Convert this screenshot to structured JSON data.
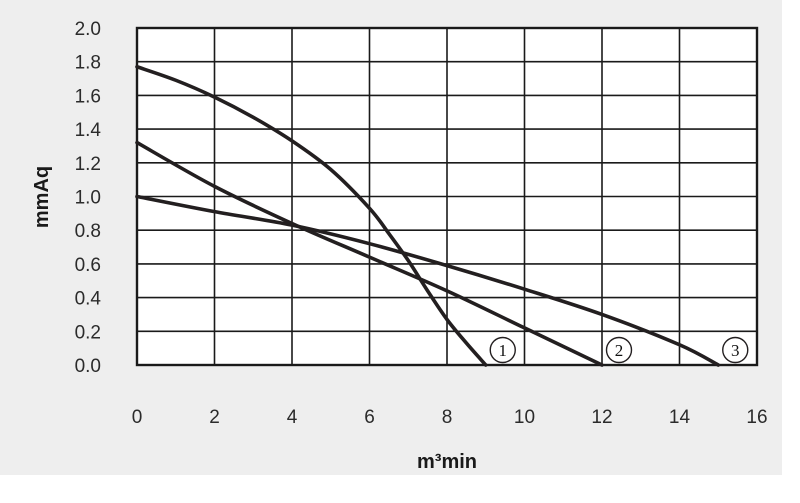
{
  "chart_data": {
    "type": "line",
    "xlabel": "m³min",
    "ylabel": "mmAq",
    "xlim": [
      0,
      16
    ],
    "ylim": [
      0,
      2.0
    ],
    "x_ticks": [
      "0",
      "2",
      "4",
      "6",
      "8",
      "10",
      "12",
      "14",
      "16"
    ],
    "y_ticks": [
      "0.0",
      "0.2",
      "0.4",
      "0.6",
      "0.8",
      "1.0",
      "1.2",
      "1.4",
      "1.6",
      "1.8",
      "2.0"
    ],
    "grid": true,
    "series": [
      {
        "name": "1",
        "x": [
          0,
          1,
          2,
          3,
          4,
          5,
          6,
          6.5,
          7,
          7.5,
          8,
          8.5,
          9
        ],
        "y": [
          1.77,
          1.69,
          1.59,
          1.47,
          1.33,
          1.16,
          0.93,
          0.78,
          0.62,
          0.44,
          0.27,
          0.13,
          0.0
        ]
      },
      {
        "name": "2",
        "x": [
          0,
          2,
          4,
          6,
          8,
          10,
          12
        ],
        "y": [
          1.32,
          1.06,
          0.84,
          0.64,
          0.44,
          0.22,
          0.0
        ]
      },
      {
        "name": "3",
        "x": [
          0,
          2,
          4,
          6,
          8,
          10,
          12,
          14,
          15
        ],
        "y": [
          1.0,
          0.91,
          0.83,
          0.72,
          0.59,
          0.45,
          0.3,
          0.12,
          0.0
        ]
      }
    ]
  },
  "colors": {
    "panel": "#eeeeee",
    "plot_bg": "#ffffff",
    "grid": "#1a1a1a",
    "curve": "#231f20",
    "text": "#2b2b2b"
  }
}
